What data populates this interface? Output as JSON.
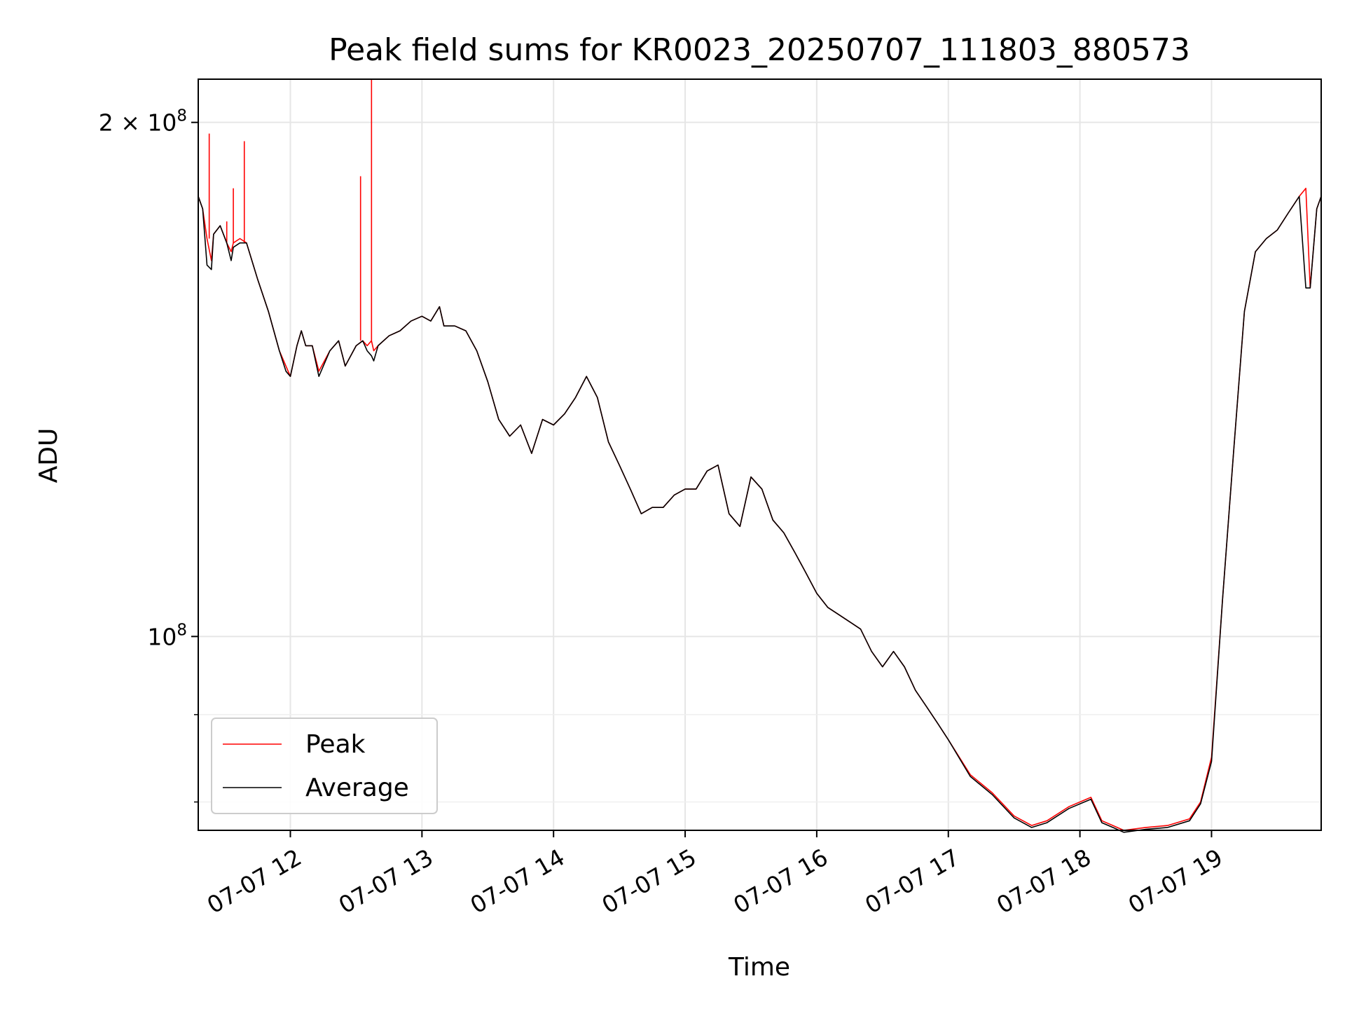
{
  "chart_data": {
    "type": "line",
    "title": "Peak field sums for KR0023_20250707_111803_880573",
    "xlabel": "Time",
    "ylabel": "ADU",
    "y_scale": "log",
    "ylim": [
      77000000,
      212000000
    ],
    "xlim": [
      "2025-07-07T11:18",
      "2025-07-07T19:50"
    ],
    "grid": true,
    "legend_position": "lower-left",
    "x_ticks": [
      {
        "value": "2025-07-07T12:00",
        "label": "07-07 12"
      },
      {
        "value": "2025-07-07T13:00",
        "label": "07-07 13"
      },
      {
        "value": "2025-07-07T14:00",
        "label": "07-07 14"
      },
      {
        "value": "2025-07-07T15:00",
        "label": "07-07 15"
      },
      {
        "value": "2025-07-07T16:00",
        "label": "07-07 16"
      },
      {
        "value": "2025-07-07T17:00",
        "label": "07-07 17"
      },
      {
        "value": "2025-07-07T18:00",
        "label": "07-07 18"
      },
      {
        "value": "2025-07-07T19:00",
        "label": "07-07 19"
      }
    ],
    "y_ticks": [
      {
        "value": 200000000,
        "mantissa": "2 × 10",
        "exponent": "8"
      },
      {
        "value": 100000000,
        "mantissa": "10",
        "exponent": "8"
      }
    ],
    "series": [
      {
        "name": "Peak",
        "color": "#ff0000",
        "x": [
          "2025-07-07T11:18",
          "2025-07-07T11:20",
          "2025-07-07T11:22",
          "2025-07-07T11:24",
          "2025-07-07T11:25",
          "2025-07-07T11:28",
          "2025-07-07T11:31",
          "2025-07-07T11:33",
          "2025-07-07T11:34",
          "2025-07-07T11:37",
          "2025-07-07T11:40",
          "2025-07-07T11:45",
          "2025-07-07T11:50",
          "2025-07-07T11:55",
          "2025-07-07T11:58",
          "2025-07-07T12:00",
          "2025-07-07T12:03",
          "2025-07-07T12:05",
          "2025-07-07T12:07",
          "2025-07-07T12:10",
          "2025-07-07T12:13",
          "2025-07-07T12:18",
          "2025-07-07T12:22",
          "2025-07-07T12:25",
          "2025-07-07T12:30",
          "2025-07-07T12:33",
          "2025-07-07T12:35",
          "2025-07-07T12:37",
          "2025-07-07T12:38",
          "2025-07-07T12:40",
          "2025-07-07T12:45",
          "2025-07-07T12:50",
          "2025-07-07T12:55",
          "2025-07-07T13:00",
          "2025-07-07T13:04",
          "2025-07-07T13:08",
          "2025-07-07T13:10",
          "2025-07-07T13:15",
          "2025-07-07T13:20",
          "2025-07-07T13:25",
          "2025-07-07T13:30",
          "2025-07-07T13:35",
          "2025-07-07T13:40",
          "2025-07-07T13:45",
          "2025-07-07T13:50",
          "2025-07-07T13:55",
          "2025-07-07T14:00",
          "2025-07-07T14:05",
          "2025-07-07T14:10",
          "2025-07-07T14:15",
          "2025-07-07T14:20",
          "2025-07-07T14:25",
          "2025-07-07T14:30",
          "2025-07-07T14:35",
          "2025-07-07T14:40",
          "2025-07-07T14:45",
          "2025-07-07T14:50",
          "2025-07-07T14:55",
          "2025-07-07T15:00",
          "2025-07-07T15:05",
          "2025-07-07T15:10",
          "2025-07-07T15:15",
          "2025-07-07T15:20",
          "2025-07-07T15:25",
          "2025-07-07T15:30",
          "2025-07-07T15:35",
          "2025-07-07T15:40",
          "2025-07-07T15:45",
          "2025-07-07T15:50",
          "2025-07-07T15:55",
          "2025-07-07T16:00",
          "2025-07-07T16:05",
          "2025-07-07T16:10",
          "2025-07-07T16:15",
          "2025-07-07T16:20",
          "2025-07-07T16:25",
          "2025-07-07T16:30",
          "2025-07-07T16:35",
          "2025-07-07T16:40",
          "2025-07-07T16:45",
          "2025-07-07T16:50",
          "2025-07-07T16:55",
          "2025-07-07T17:00",
          "2025-07-07T17:10",
          "2025-07-07T17:20",
          "2025-07-07T17:30",
          "2025-07-07T17:38",
          "2025-07-07T17:45",
          "2025-07-07T17:55",
          "2025-07-07T18:05",
          "2025-07-07T18:10",
          "2025-07-07T18:15",
          "2025-07-07T18:20",
          "2025-07-07T18:30",
          "2025-07-07T18:40",
          "2025-07-07T18:50",
          "2025-07-07T18:55",
          "2025-07-07T19:00",
          "2025-07-07T19:05",
          "2025-07-07T19:10",
          "2025-07-07T19:15",
          "2025-07-07T19:20",
          "2025-07-07T19:25",
          "2025-07-07T19:30",
          "2025-07-07T19:35",
          "2025-07-07T19:40",
          "2025-07-07T19:43",
          "2025-07-07T19:45",
          "2025-07-07T19:48",
          "2025-07-07T19:50"
        ],
        "y": [
          181000000,
          178000000,
          171000000,
          166000000,
          172000000,
          174000000,
          170000000,
          168000000,
          170000000,
          171000000,
          170000000,
          162000000,
          155000000,
          147000000,
          144000000,
          142000000,
          148000000,
          151000000,
          148000000,
          148000000,
          143000000,
          147000000,
          149000000,
          144000000,
          148000000,
          149000000,
          148000000,
          149000000,
          147000000,
          148000000,
          150000000,
          151000000,
          153000000,
          154000000,
          153000000,
          156000000,
          152000000,
          152000000,
          151000000,
          147000000,
          141000000,
          134000000,
          131000000,
          133000000,
          128000000,
          134000000,
          133000000,
          135000000,
          138000000,
          142000000,
          138000000,
          130000000,
          126000000,
          122000000,
          118000000,
          119000000,
          119000000,
          121000000,
          122000000,
          122000000,
          125000000,
          126000000,
          118000000,
          116000000,
          124000000,
          122000000,
          117000000,
          115000000,
          112000000,
          109000000,
          106000000,
          104000000,
          103000000,
          102000000,
          101000000,
          98000000,
          96000000,
          98000000,
          96000000,
          93000000,
          91000000,
          89000000,
          87000000,
          83000000,
          81000000,
          78500000,
          77500000,
          78000000,
          79500000,
          80500000,
          78000000,
          77500000,
          77000000,
          77300000,
          77500000,
          78200000,
          80000000,
          85000000,
          105000000,
          128000000,
          155000000,
          168000000,
          171000000,
          173000000,
          177000000,
          181000000,
          183000000,
          160000000,
          178000000,
          181000000
        ],
        "spikes": [
          {
            "x": "2025-07-07T11:23",
            "y": 197000000
          },
          {
            "x": "2025-07-07T11:31",
            "y": 175000000
          },
          {
            "x": "2025-07-07T11:34",
            "y": 183000000
          },
          {
            "x": "2025-07-07T11:39",
            "y": 195000000
          },
          {
            "x": "2025-07-07T12:32",
            "y": 186000000
          },
          {
            "x": "2025-07-07T12:37",
            "y": 212000000
          }
        ]
      },
      {
        "name": "Average",
        "color": "#000000",
        "x": [
          "2025-07-07T11:18",
          "2025-07-07T11:20",
          "2025-07-07T11:22",
          "2025-07-07T11:24",
          "2025-07-07T11:25",
          "2025-07-07T11:28",
          "2025-07-07T11:31",
          "2025-07-07T11:33",
          "2025-07-07T11:34",
          "2025-07-07T11:37",
          "2025-07-07T11:40",
          "2025-07-07T11:45",
          "2025-07-07T11:50",
          "2025-07-07T11:55",
          "2025-07-07T11:58",
          "2025-07-07T12:00",
          "2025-07-07T12:03",
          "2025-07-07T12:05",
          "2025-07-07T12:07",
          "2025-07-07T12:10",
          "2025-07-07T12:13",
          "2025-07-07T12:18",
          "2025-07-07T12:22",
          "2025-07-07T12:25",
          "2025-07-07T12:30",
          "2025-07-07T12:33",
          "2025-07-07T12:35",
          "2025-07-07T12:37",
          "2025-07-07T12:38",
          "2025-07-07T12:40",
          "2025-07-07T12:45",
          "2025-07-07T12:50",
          "2025-07-07T12:55",
          "2025-07-07T13:00",
          "2025-07-07T13:04",
          "2025-07-07T13:08",
          "2025-07-07T13:10",
          "2025-07-07T13:15",
          "2025-07-07T13:20",
          "2025-07-07T13:25",
          "2025-07-07T13:30",
          "2025-07-07T13:35",
          "2025-07-07T13:40",
          "2025-07-07T13:45",
          "2025-07-07T13:50",
          "2025-07-07T13:55",
          "2025-07-07T14:00",
          "2025-07-07T14:05",
          "2025-07-07T14:10",
          "2025-07-07T14:15",
          "2025-07-07T14:20",
          "2025-07-07T14:25",
          "2025-07-07T14:30",
          "2025-07-07T14:35",
          "2025-07-07T14:40",
          "2025-07-07T14:45",
          "2025-07-07T14:50",
          "2025-07-07T14:55",
          "2025-07-07T15:00",
          "2025-07-07T15:05",
          "2025-07-07T15:10",
          "2025-07-07T15:15",
          "2025-07-07T15:20",
          "2025-07-07T15:25",
          "2025-07-07T15:30",
          "2025-07-07T15:35",
          "2025-07-07T15:40",
          "2025-07-07T15:45",
          "2025-07-07T15:50",
          "2025-07-07T15:55",
          "2025-07-07T16:00",
          "2025-07-07T16:05",
          "2025-07-07T16:10",
          "2025-07-07T16:15",
          "2025-07-07T16:20",
          "2025-07-07T16:25",
          "2025-07-07T16:30",
          "2025-07-07T16:35",
          "2025-07-07T16:40",
          "2025-07-07T16:45",
          "2025-07-07T16:50",
          "2025-07-07T16:55",
          "2025-07-07T17:00",
          "2025-07-07T17:10",
          "2025-07-07T17:20",
          "2025-07-07T17:30",
          "2025-07-07T17:38",
          "2025-07-07T17:45",
          "2025-07-07T17:55",
          "2025-07-07T18:05",
          "2025-07-07T18:10",
          "2025-07-07T18:15",
          "2025-07-07T18:20",
          "2025-07-07T18:30",
          "2025-07-07T18:40",
          "2025-07-07T18:50",
          "2025-07-07T18:55",
          "2025-07-07T19:00",
          "2025-07-07T19:05",
          "2025-07-07T19:10",
          "2025-07-07T19:15",
          "2025-07-07T19:20",
          "2025-07-07T19:25",
          "2025-07-07T19:30",
          "2025-07-07T19:35",
          "2025-07-07T19:40",
          "2025-07-07T19:43",
          "2025-07-07T19:45",
          "2025-07-07T19:48",
          "2025-07-07T19:50"
        ],
        "y": [
          181000000,
          178000000,
          165000000,
          164000000,
          172000000,
          174000000,
          170000000,
          166000000,
          169000000,
          170000000,
          170000000,
          162000000,
          155000000,
          147000000,
          143000000,
          142000000,
          148000000,
          151000000,
          148000000,
          148000000,
          142000000,
          147000000,
          149000000,
          144000000,
          148000000,
          149000000,
          147000000,
          146000000,
          145000000,
          148000000,
          150000000,
          151000000,
          153000000,
          154000000,
          153000000,
          156000000,
          152000000,
          152000000,
          151000000,
          147000000,
          141000000,
          134000000,
          131000000,
          133000000,
          128000000,
          134000000,
          133000000,
          135000000,
          138000000,
          142000000,
          138000000,
          130000000,
          126000000,
          122000000,
          118000000,
          119000000,
          119000000,
          121000000,
          122000000,
          122000000,
          125000000,
          126000000,
          118000000,
          116000000,
          124000000,
          122000000,
          117000000,
          115000000,
          112000000,
          109000000,
          106000000,
          104000000,
          103000000,
          102000000,
          101000000,
          98000000,
          96000000,
          98000000,
          96000000,
          93000000,
          91000000,
          89000000,
          87000000,
          82800000,
          80800000,
          78300000,
          77300000,
          77800000,
          79300000,
          80300000,
          77800000,
          77300000,
          76800000,
          77100000,
          77300000,
          78000000,
          79800000,
          84500000,
          105000000,
          128000000,
          155000000,
          168000000,
          171000000,
          173000000,
          177000000,
          181000000,
          160000000,
          160000000,
          178000000,
          181000000
        ]
      }
    ]
  }
}
